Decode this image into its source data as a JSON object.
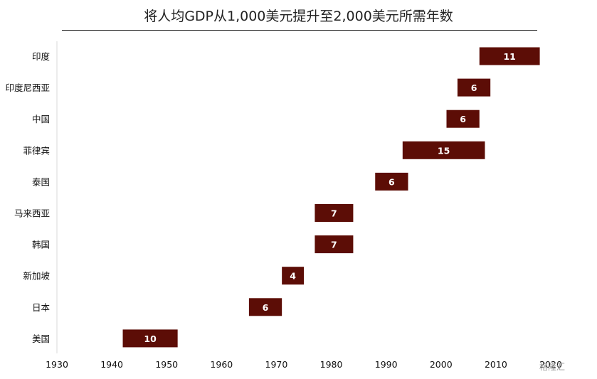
{
  "chart_data": {
    "type": "bar",
    "orientation": "floating-horizontal",
    "title": "将人均GDP从1,000美元提升至2,000美元所需年数",
    "xlim": [
      1930,
      2020
    ],
    "xticks": [
      "1930",
      "1940",
      "1950",
      "1960",
      "1970",
      "1980",
      "1990",
      "2000",
      "2010",
      "2020"
    ],
    "categories": [
      "印度",
      "印度尼西亚",
      "中国",
      "菲律宾",
      "泰国",
      "马来西亚",
      "韩国",
      "新加坡",
      "日本",
      "美国"
    ],
    "bars": [
      {
        "country": "印度",
        "start": 2007,
        "end": 2018,
        "label": "11"
      },
      {
        "country": "印度尼西亚",
        "start": 2003,
        "end": 2009,
        "label": "6"
      },
      {
        "country": "中国",
        "start": 2001,
        "end": 2007,
        "label": "6"
      },
      {
        "country": "菲律宾",
        "start": 1993,
        "end": 2008,
        "label": "15"
      },
      {
        "country": "泰国",
        "start": 1988,
        "end": 1994,
        "label": "6"
      },
      {
        "country": "马来西亚",
        "start": 1977,
        "end": 1984,
        "label": "7"
      },
      {
        "country": "韩国",
        "start": 1977,
        "end": 1984,
        "label": "7"
      },
      {
        "country": "新加坡",
        "start": 1971,
        "end": 1975,
        "label": "4"
      },
      {
        "country": "日本",
        "start": 1965,
        "end": 1971,
        "label": "6"
      },
      {
        "country": "美国",
        "start": 1942,
        "end": 1952,
        "label": "10"
      }
    ],
    "bar_color": "#5c0d06",
    "grid": false
  },
  "watermark": "格隆汇"
}
